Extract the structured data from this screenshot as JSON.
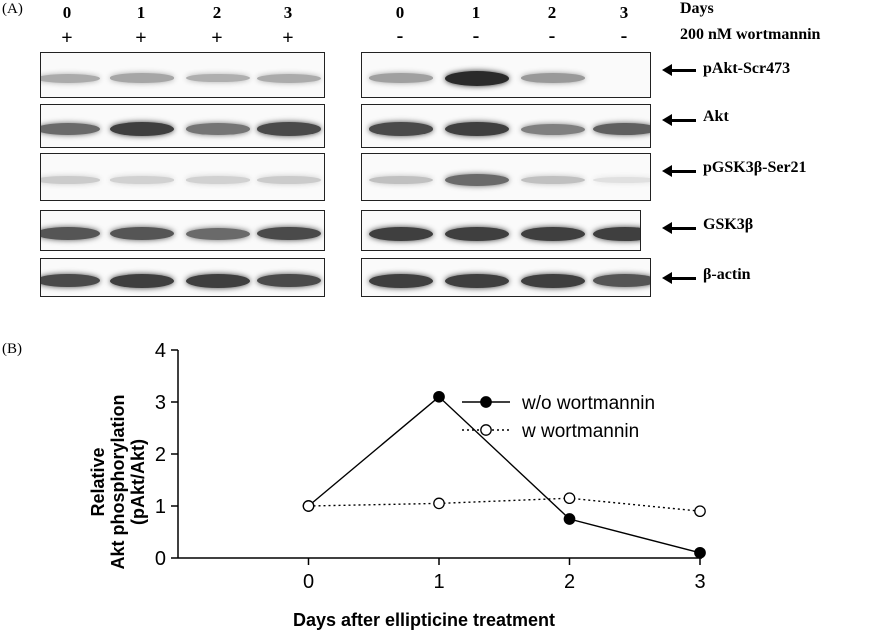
{
  "panel_a": {
    "label": "(A)",
    "header_days": "Days",
    "header_treatment": "200 nM wortmannin",
    "left_lanes": [
      {
        "day": "0",
        "sign": "+"
      },
      {
        "day": "1",
        "sign": "+"
      },
      {
        "day": "2",
        "sign": "+"
      },
      {
        "day": "3",
        "sign": "+"
      }
    ],
    "right_lanes": [
      {
        "day": "0",
        "sign": "-"
      },
      {
        "day": "1",
        "sign": "-"
      },
      {
        "day": "2",
        "sign": "-"
      },
      {
        "day": "3",
        "sign": "-"
      }
    ],
    "blot_rows": [
      {
        "label": "pAkt-Scr473",
        "left_intensity": [
          0.3,
          0.32,
          0.28,
          0.3
        ],
        "right_intensity": [
          0.35,
          0.9,
          0.38,
          0.0
        ]
      },
      {
        "label": "Akt",
        "left_intensity": [
          0.6,
          0.8,
          0.55,
          0.75
        ],
        "right_intensity": [
          0.75,
          0.8,
          0.5,
          0.65
        ]
      },
      {
        "label": "pGSK3β-Ser21",
        "left_intensity": [
          0.15,
          0.12,
          0.12,
          0.15
        ],
        "right_intensity": [
          0.2,
          0.6,
          0.2,
          0.05
        ]
      },
      {
        "label": "GSK3β",
        "left_intensity": [
          0.7,
          0.7,
          0.6,
          0.75
        ],
        "right_intensity": [
          0.8,
          0.8,
          0.8,
          0.8
        ]
      },
      {
        "label": "β-actin",
        "left_intensity": [
          0.75,
          0.8,
          0.8,
          0.75
        ],
        "right_intensity": [
          0.8,
          0.8,
          0.8,
          0.7
        ]
      }
    ]
  },
  "panel_b": {
    "label": "(B)"
  },
  "chart_data": {
    "type": "line",
    "title": "",
    "xlabel": "Days after ellipticine treatment",
    "ylabel_line1": "Relative",
    "ylabel_line2": "Akt phosphorylation",
    "ylabel_line3": "(pAkt/Akt)",
    "x": [
      0,
      1,
      2,
      3
    ],
    "xlim": [
      -1,
      3
    ],
    "ylim": [
      0,
      4
    ],
    "x_ticks": [
      "0",
      "1",
      "2",
      "3"
    ],
    "y_ticks": [
      "0",
      "1",
      "2",
      "3",
      "4"
    ],
    "legend_position": "top-right",
    "series": [
      {
        "name": "w/o wortmannin",
        "values": [
          1.0,
          3.1,
          0.75,
          0.1
        ],
        "marker": "filled-circle",
        "line": "solid"
      },
      {
        "name": "w wortmannin",
        "values": [
          1.0,
          1.05,
          1.15,
          0.9
        ],
        "marker": "open-circle",
        "line": "dotted"
      }
    ]
  }
}
